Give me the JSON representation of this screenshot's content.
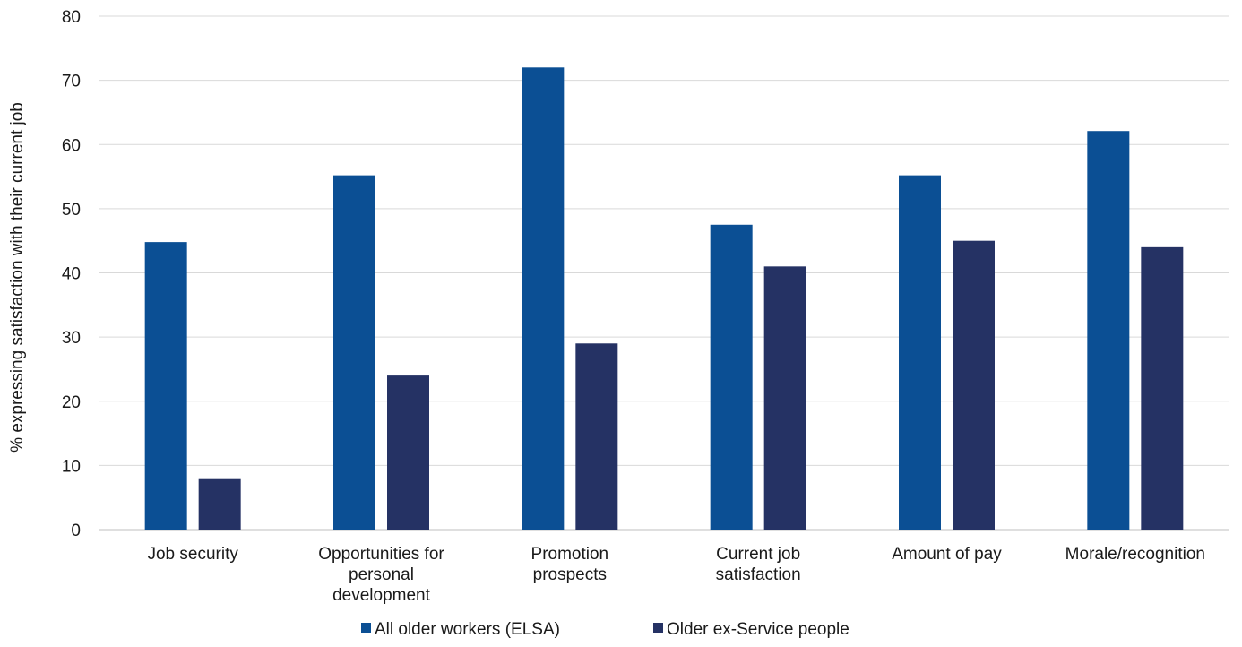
{
  "chart_data": {
    "type": "bar",
    "title": "",
    "xlabel": "",
    "ylabel": "% expressing satisfaction with their current job",
    "ylim": [
      0,
      80
    ],
    "yticks": [
      0,
      10,
      20,
      30,
      40,
      50,
      60,
      70,
      80
    ],
    "grid": true,
    "legend_position": "bottom-center",
    "categories": [
      [
        "Job security"
      ],
      [
        "Opportunities for",
        "personal",
        "development"
      ],
      [
        "Promotion",
        "prospects"
      ],
      [
        "Current job",
        "satisfaction"
      ],
      [
        "Amount of pay"
      ],
      [
        "Morale/recognition"
      ]
    ],
    "series": [
      {
        "name": "All older workers (ELSA)",
        "color": "#0b4f94",
        "values": [
          44.8,
          55.2,
          72,
          47.5,
          55.2,
          62.1
        ]
      },
      {
        "name": "Older ex-Service people",
        "color": "#253264",
        "values": [
          8,
          24,
          29,
          41,
          45,
          44
        ]
      }
    ]
  }
}
